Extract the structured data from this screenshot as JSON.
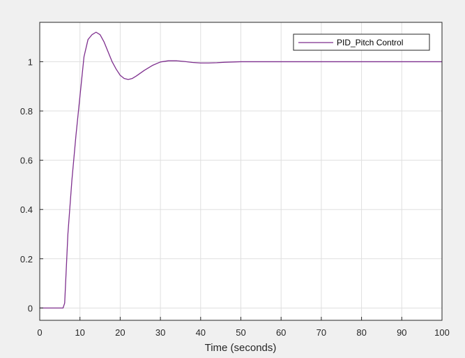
{
  "chart_data": {
    "type": "line",
    "title": "",
    "xlabel": "Time (seconds)",
    "ylabel": "",
    "xlim": [
      0,
      100
    ],
    "ylim": [
      -0.05,
      1.16
    ],
    "xticks": [
      0,
      10,
      20,
      30,
      40,
      50,
      60,
      70,
      80,
      90,
      100
    ],
    "yticks": [
      0,
      0.2,
      0.4,
      0.6,
      0.8,
      1
    ],
    "ytick_labels": [
      "0",
      "0.2",
      "0.4",
      "0.6",
      "0.8",
      "1"
    ],
    "grid": true,
    "legend": {
      "position": "top-right",
      "entries": [
        "PID_Pitch Control"
      ]
    },
    "colors": {
      "line": "#7e2f8e",
      "background": "#f0f0f0",
      "plot_area": "#ffffff",
      "grid": "#dfdfdf",
      "axis": "#262626"
    },
    "series": [
      {
        "name": "PID_Pitch Control",
        "x": [
          0,
          5.8,
          6.2,
          7,
          8,
          9,
          10,
          11,
          12,
          13,
          14,
          15,
          16,
          17,
          18,
          19,
          20,
          21,
          22,
          23,
          24,
          26,
          28,
          30,
          32,
          34,
          36,
          38,
          40,
          42,
          44,
          46,
          48,
          50,
          55,
          60,
          70,
          80,
          90,
          100
        ],
        "y": [
          0,
          0,
          0.02,
          0.3,
          0.52,
          0.7,
          0.86,
          1.02,
          1.09,
          1.11,
          1.12,
          1.11,
          1.08,
          1.04,
          1.0,
          0.97,
          0.945,
          0.932,
          0.928,
          0.932,
          0.942,
          0.965,
          0.985,
          0.999,
          1.004,
          1.004,
          1.001,
          0.997,
          0.995,
          0.995,
          0.996,
          0.998,
          0.999,
          1.0,
          1.0,
          1.0,
          1.0,
          1.0,
          1.0,
          1.0
        ]
      }
    ]
  }
}
